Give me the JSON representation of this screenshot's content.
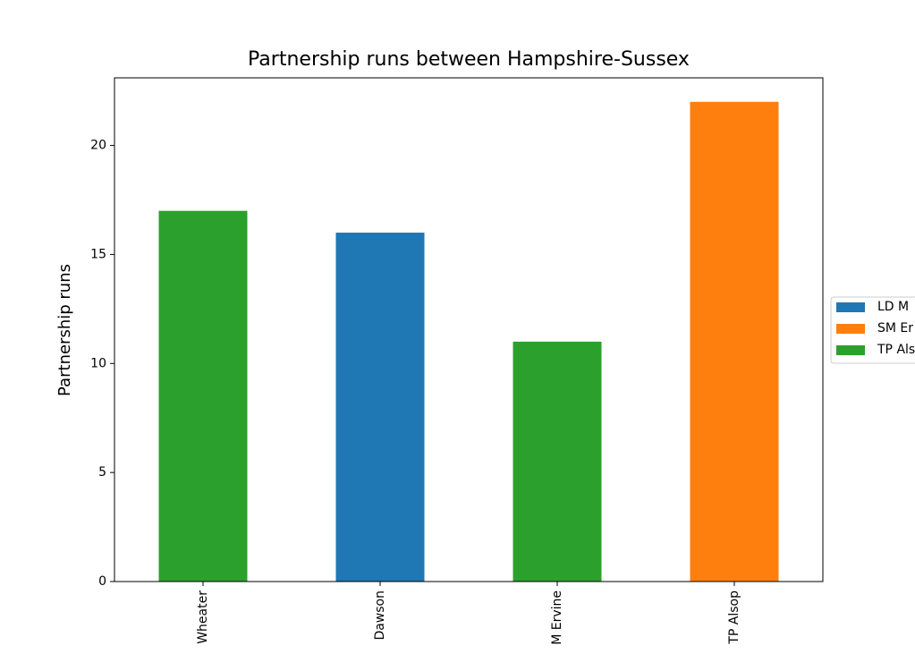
{
  "chart_data": {
    "type": "bar",
    "title": "Partnership runs between Hampshire-Sussex",
    "ylabel": "Partnership runs",
    "categories": [
      "Wheater",
      "Dawson",
      "M Ervine",
      "TP Alsop"
    ],
    "series": [
      {
        "name": "LD M",
        "color": "#1f77b4",
        "values": [
          null,
          16,
          null,
          null
        ]
      },
      {
        "name": "SM Er",
        "color": "#ff7f0e",
        "values": [
          null,
          null,
          null,
          22
        ]
      },
      {
        "name": "TP Als",
        "color": "#2ca02c",
        "values": [
          17,
          null,
          11,
          null
        ]
      }
    ],
    "ylim": [
      0,
      23.1
    ],
    "yticks": [
      0,
      5,
      10,
      15,
      20
    ],
    "grid": false,
    "legend": "right"
  }
}
